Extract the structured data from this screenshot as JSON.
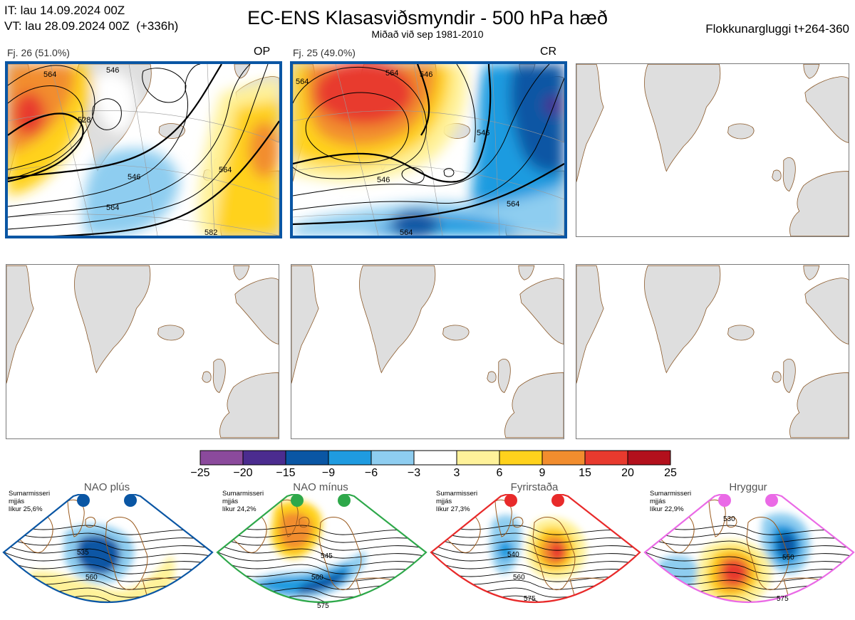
{
  "header": {
    "it_line": "IT: lau 14.09.2024 00Z",
    "vt_line": "VT: lau 28.09.2024 00Z  (+336h)",
    "title": "EC-ENS Klasasviðsmyndir - 500 hPa hæð",
    "subtitle": "Miðað við sep 1981-2010",
    "window": "Flokkunargluggi t+264-360"
  },
  "colors": {
    "highlight_border": "#0a56a4",
    "land": "#dedede",
    "coast": "#8b5a2b"
  },
  "panels": [
    {
      "label": "Fj. 26 (51.0%)",
      "tag": "OP",
      "members": 26,
      "percent": 51.0
    },
    {
      "label": "Fj. 25 (49.0%)",
      "tag": "CR",
      "members": 25,
      "percent": 49.0
    }
  ],
  "contour_labels": {
    "p1": [
      "564",
      "546",
      "528",
      "546",
      "564",
      "564",
      "582"
    ],
    "p2": [
      "564",
      "564",
      "546",
      "546",
      "546",
      "564",
      "564"
    ]
  },
  "chart_data": {
    "type": "heatmap",
    "variable": "500 hPa anomaly",
    "colorbar": {
      "ticks": [
        "−25",
        "−20",
        "−15",
        "−9",
        "−6",
        "−3",
        "3",
        "6",
        "9",
        "15",
        "20",
        "25"
      ],
      "colors": [
        "#8b4a9c",
        "#4b2c8f",
        "#0a56a4",
        "#1f9be0",
        "#8ecdf0",
        "#ffffff",
        "#fff29a",
        "#ffd21c",
        "#f28d2e",
        "#e83a2e",
        "#b3101c"
      ]
    }
  },
  "regimes": [
    {
      "name": "NAO plús",
      "note": "Sumarmisseri\nmjjás\nlíkur 25,6%",
      "probability": 25.6,
      "color": "#0a56a4",
      "labels": [
        "535",
        "560"
      ]
    },
    {
      "name": "NAO mínus",
      "note": "Sumarmisseri\nmjjás\nlíkur 24,2%",
      "probability": 24.2,
      "color": "#2ea84a",
      "labels": [
        "545",
        "560",
        "575"
      ]
    },
    {
      "name": "Fyrirstaða",
      "note": "Sumarmisseri\nmjjás\nlíkur 27,3%",
      "probability": 27.3,
      "color": "#e82a2a",
      "labels": [
        "540",
        "560",
        "575"
      ]
    },
    {
      "name": "Hryggur",
      "note": "Sumarmisseri\nmjjás\nlíkur 22,9%",
      "probability": 22.9,
      "color": "#ea6ae6",
      "labels": [
        "530",
        "550",
        "575"
      ]
    }
  ]
}
